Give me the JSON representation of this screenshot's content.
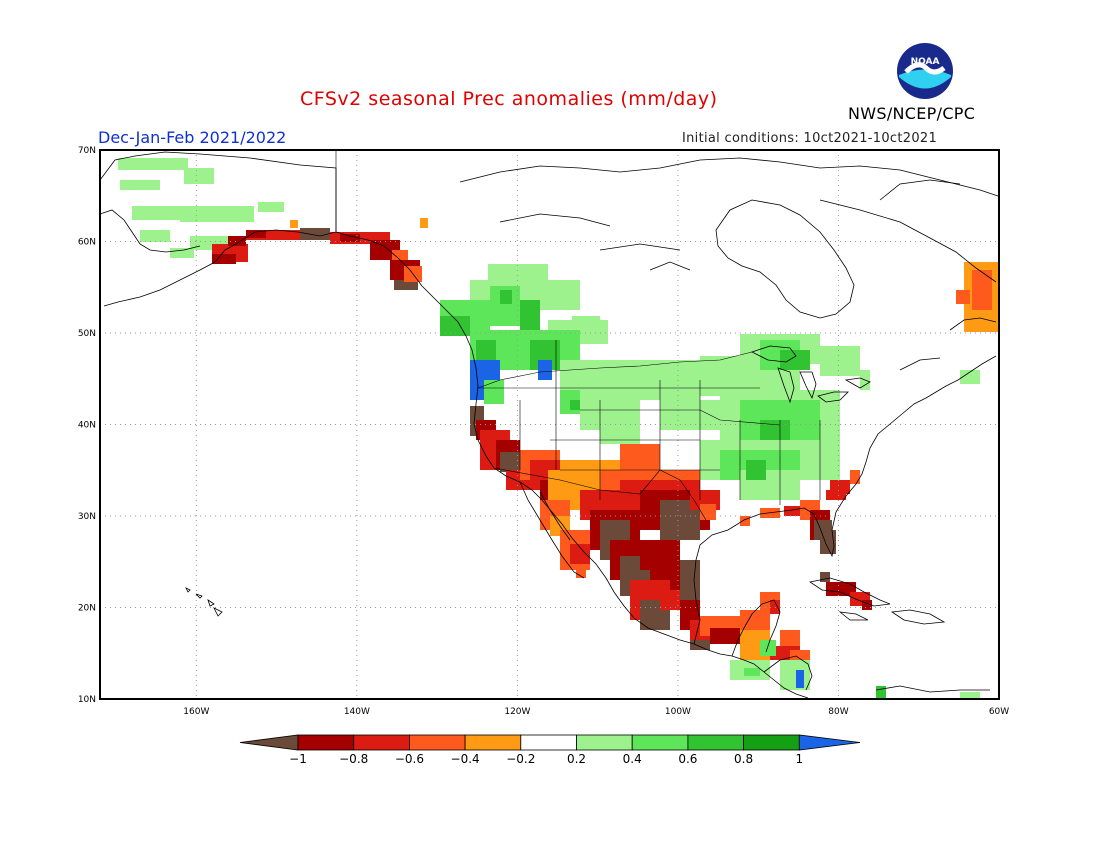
{
  "header": {
    "title": "CFSv2 seasonal Prec anomalies (mm/day)",
    "season": "Dec-Jan-Feb 2021/2022",
    "initial_conditions": "Initial conditions: 10ct2021-10ct2021",
    "agency": "NWS/NCEP/CPC",
    "logo_text": "NOAA"
  },
  "map": {
    "lat_ticks": [
      "10N",
      "20N",
      "30N",
      "40N",
      "50N",
      "60N",
      "70N"
    ],
    "lon_ticks": [
      "160W",
      "140W",
      "120W",
      "100W",
      "80W",
      "60W"
    ],
    "grid": "dotted",
    "colors": {
      "border": "#000000",
      "coast": "#000000",
      "grid": "#999999"
    }
  },
  "legend": {
    "labels": [
      "-1",
      "-0.8",
      "-0.6",
      "-0.4",
      "-0.2",
      "0.2",
      "0.4",
      "0.6",
      "0.8",
      "1"
    ],
    "bins": [
      {
        "range": "< -1",
        "color": "#6b4a3a"
      },
      {
        "range": "-1 to -0.8",
        "color": "#a50000"
      },
      {
        "range": "-0.8 to -0.6",
        "color": "#dc1c12"
      },
      {
        "range": "-0.6 to -0.4",
        "color": "#ff5a1e"
      },
      {
        "range": "-0.4 to -0.2",
        "color": "#ff9a14"
      },
      {
        "range": "-0.2 to 0.2",
        "color": "#ffffff"
      },
      {
        "range": "0.2 to 0.4",
        "color": "#9ef28e"
      },
      {
        "range": "0.4 to 0.6",
        "color": "#5ee65a"
      },
      {
        "range": "0.6 to 0.8",
        "color": "#32c332"
      },
      {
        "range": "0.8 to 1",
        "color": "#14a014"
      },
      {
        "range": "> 1",
        "color": "#1c64e6"
      }
    ]
  }
}
